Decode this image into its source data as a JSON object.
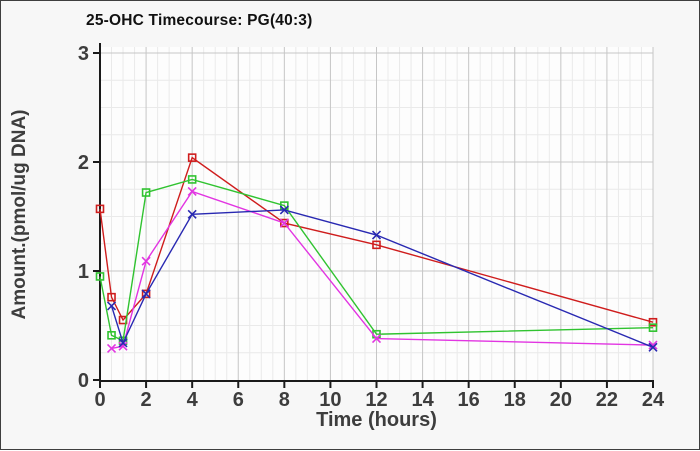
{
  "window": {
    "background": "#f7f7f7",
    "plot_background": "#fdfdfd",
    "border_color": "#3f3f3f",
    "axis_color": "#1a1a1a",
    "tick_label_color": "#3d3d3d",
    "major_grid_color": "#c6c6c6",
    "minor_grid_color": "#eaeaea"
  },
  "chart_data": {
    "type": "line",
    "title": "25-OHC Timecourse: PG(40:3)",
    "xlabel": "Time (hours)",
    "ylabel": "Amount.(pmol/ug DNA)",
    "xlim": [
      0,
      24
    ],
    "ylim": [
      0,
      3
    ],
    "x_ticks": [
      0,
      2,
      4,
      6,
      8,
      10,
      12,
      14,
      16,
      18,
      20,
      22,
      24
    ],
    "y_ticks": [
      0,
      1,
      2,
      3
    ],
    "x_minor_step": 0.5,
    "y_minor_step": 0.25,
    "grid": true,
    "legend_position": "none",
    "x": [
      0,
      0.5,
      1,
      2,
      4,
      8,
      12,
      24
    ],
    "series": [
      {
        "name": "red-squares",
        "color": "#cf1d1d",
        "marker": "square",
        "values": [
          1.57,
          0.76,
          0.55,
          0.79,
          2.04,
          1.44,
          1.24,
          0.53
        ]
      },
      {
        "name": "green-squares",
        "color": "#30c330",
        "marker": "square",
        "values": [
          0.95,
          0.41,
          0.36,
          1.72,
          1.84,
          1.6,
          0.42,
          0.48
        ]
      },
      {
        "name": "magenta-x",
        "color": "#e235e2",
        "marker": "x",
        "values": [
          null,
          0.29,
          0.31,
          1.09,
          1.73,
          1.44,
          0.38,
          0.32
        ]
      },
      {
        "name": "blue-x",
        "color": "#2929b2",
        "marker": "x",
        "values": [
          null,
          0.68,
          0.34,
          0.79,
          1.52,
          1.56,
          1.33,
          0.3
        ]
      }
    ]
  }
}
